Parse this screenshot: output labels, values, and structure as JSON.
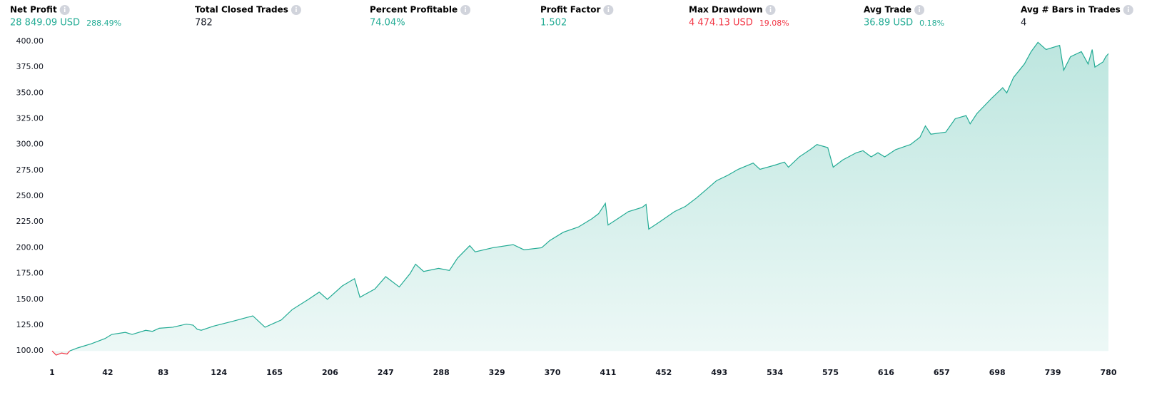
{
  "metrics": [
    {
      "label": "Net Profit",
      "value": "28 849.09 USD",
      "percent": "288.49%",
      "color": "#22ab94"
    },
    {
      "label": "Total Closed Trades",
      "value": "782",
      "color": "#131722"
    },
    {
      "label": "Percent Profitable",
      "value": "74.04%",
      "color": "#22ab94"
    },
    {
      "label": "Profit Factor",
      "value": "1.502",
      "color": "#22ab94"
    },
    {
      "label": "Max Drawdown",
      "value": "4 474.13 USD",
      "percent": "19.08%",
      "color": "#f23645"
    },
    {
      "label": "Avg Trade",
      "value": "36.89 USD",
      "percent": "0.18%",
      "color": "#22ab94"
    },
    {
      "label": "Avg # Bars in Trades",
      "value": "4",
      "color": "#131722"
    }
  ],
  "chart_data": {
    "type": "area",
    "color": "#22ab94",
    "negative_color": "#f23645",
    "grid": false,
    "xlim": [
      1,
      780
    ],
    "ylim": [
      96,
      402
    ],
    "xticks": [
      1,
      42,
      83,
      124,
      165,
      206,
      247,
      288,
      329,
      370,
      411,
      452,
      493,
      534,
      575,
      616,
      657,
      698,
      739,
      780
    ],
    "yticks": [
      {
        "value": 100,
        "label": "100.00"
      },
      {
        "value": 125,
        "label": "125.00"
      },
      {
        "value": 150,
        "label": "150.00"
      },
      {
        "value": 175,
        "label": "175.00"
      },
      {
        "value": 200,
        "label": "200.00"
      },
      {
        "value": 225,
        "label": "225.00"
      },
      {
        "value": 250,
        "label": "250.00"
      },
      {
        "value": 275,
        "label": "275.00"
      },
      {
        "value": 300,
        "label": "300.00"
      },
      {
        "value": 325,
        "label": "325.00"
      },
      {
        "value": 350,
        "label": "350.00"
      },
      {
        "value": 375,
        "label": "375.00"
      },
      {
        "value": 400,
        "label": "400.00"
      }
    ],
    "x": [
      1,
      4,
      8,
      12,
      14,
      20,
      30,
      40,
      45,
      55,
      60,
      70,
      75,
      80,
      90,
      100,
      105,
      108,
      111,
      120,
      135,
      149,
      158,
      170,
      178,
      190,
      198,
      204,
      215,
      224,
      228,
      239,
      247,
      257,
      265,
      269,
      275,
      286,
      294,
      300,
      309,
      313,
      326,
      341,
      349,
      362,
      368,
      378,
      389,
      399,
      404,
      409,
      411,
      418,
      426,
      436,
      439,
      441,
      449,
      460,
      468,
      476,
      484,
      491,
      499,
      507,
      518,
      523,
      534,
      541,
      544,
      552,
      560,
      565,
      573,
      577,
      584,
      594,
      599,
      605,
      610,
      615,
      623,
      634,
      641,
      645,
      649,
      660,
      667,
      675,
      678,
      683,
      694,
      702,
      705,
      710,
      718,
      723,
      728,
      734,
      744,
      747,
      752,
      760,
      765,
      768,
      770,
      776,
      778,
      780
    ],
    "values": [
      100,
      96,
      98,
      97,
      100,
      103,
      107,
      112,
      116,
      118,
      116,
      120,
      119,
      122,
      123,
      126,
      125,
      121,
      120,
      124,
      129,
      134,
      123,
      130,
      140,
      150,
      157,
      150,
      163,
      170,
      152,
      160,
      172,
      162,
      175,
      184,
      177,
      180,
      178,
      190,
      202,
      196,
      200,
      203,
      198,
      200,
      207,
      215,
      220,
      228,
      233,
      243,
      222,
      228,
      235,
      239,
      242,
      218,
      225,
      235,
      240,
      248,
      257,
      265,
      270,
      276,
      282,
      276,
      280,
      283,
      278,
      288,
      295,
      300,
      297,
      278,
      285,
      292,
      294,
      288,
      292,
      288,
      295,
      300,
      307,
      318,
      310,
      312,
      325,
      328,
      320,
      330,
      345,
      355,
      350,
      365,
      378,
      390,
      399,
      392,
      396,
      372,
      385,
      390,
      378,
      392,
      375,
      380,
      385,
      388
    ]
  }
}
